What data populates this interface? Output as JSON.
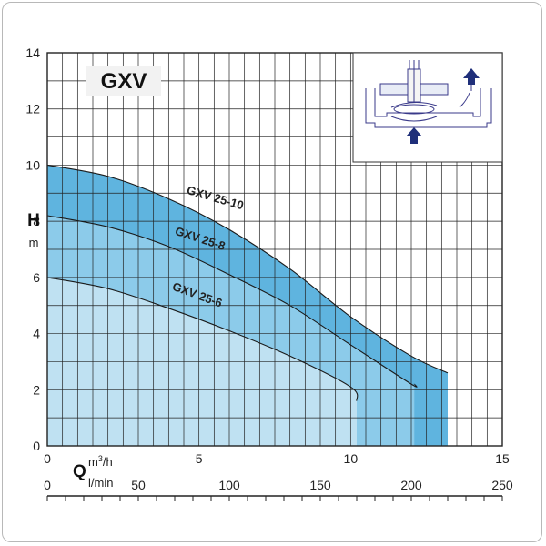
{
  "chart_data": {
    "type": "area",
    "title": "GXV",
    "ylabel": "H",
    "yunit": "m",
    "xlabel": "Q",
    "xunit_top": "m3/h",
    "xunit_bottom": "l/min",
    "xlim": [
      0,
      15
    ],
    "ylim": [
      0,
      14
    ],
    "xlim_lmin": [
      0,
      250
    ],
    "yticks": [
      0,
      2,
      4,
      6,
      8,
      10,
      12,
      14
    ],
    "xticks": [
      0,
      5,
      10,
      15
    ],
    "xticks_lmin": [
      0,
      50,
      100,
      150,
      200,
      250
    ],
    "grid": true,
    "series": [
      {
        "name": "GXV 25-10",
        "color": "#5fb4df",
        "x": [
          0,
          2,
          4,
          6,
          8,
          10,
          12,
          13.2
        ],
        "y": [
          10.0,
          9.6,
          8.8,
          7.7,
          6.3,
          4.6,
          3.2,
          2.6
        ],
        "qmax": 13.2
      },
      {
        "name": "GXV 25-8",
        "color": "#8ccbea",
        "x": [
          0,
          2,
          4,
          6,
          8,
          10,
          12,
          12.1
        ],
        "y": [
          8.2,
          7.8,
          7.1,
          6.1,
          5.0,
          3.6,
          2.2,
          2.2
        ],
        "qmax": 12.1
      },
      {
        "name": "GXV 25-6",
        "color": "#bfe1f2",
        "x": [
          0,
          2,
          4,
          6,
          8,
          10,
          10.2
        ],
        "y": [
          6.0,
          5.6,
          4.9,
          4.1,
          3.2,
          2.1,
          1.6
        ],
        "qmax": 10.2
      }
    ]
  }
}
